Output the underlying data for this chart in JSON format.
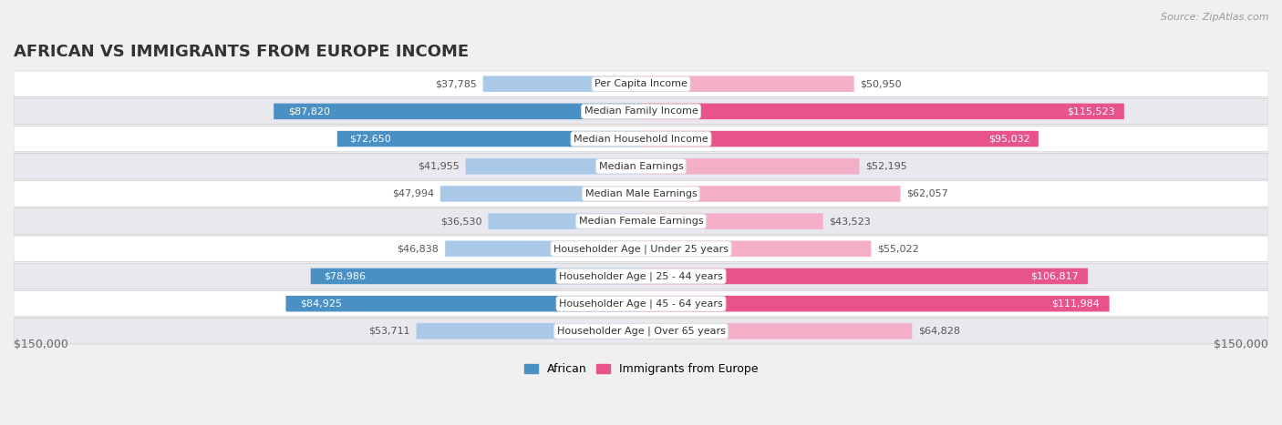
{
  "title": "African vs Immigrants from Europe Income",
  "source": "Source: ZipAtlas.com",
  "categories": [
    "Per Capita Income",
    "Median Family Income",
    "Median Household Income",
    "Median Earnings",
    "Median Male Earnings",
    "Median Female Earnings",
    "Householder Age | Under 25 years",
    "Householder Age | 25 - 44 years",
    "Householder Age | 45 - 64 years",
    "Householder Age | Over 65 years"
  ],
  "african_values": [
    37785,
    87820,
    72650,
    41955,
    47994,
    36530,
    46838,
    78986,
    84925,
    53711
  ],
  "europe_values": [
    50950,
    115523,
    95032,
    52195,
    62057,
    43523,
    55022,
    106817,
    111984,
    64828
  ],
  "african_labels": [
    "$37,785",
    "$87,820",
    "$72,650",
    "$41,955",
    "$47,994",
    "$36,530",
    "$46,838",
    "$78,986",
    "$84,925",
    "$53,711"
  ],
  "europe_labels": [
    "$50,950",
    "$115,523",
    "$95,032",
    "$52,195",
    "$62,057",
    "$43,523",
    "$55,022",
    "$106,817",
    "$111,984",
    "$64,828"
  ],
  "max_val": 150000,
  "african_color_light": "#aac9e8",
  "african_color_dark": "#4a90c4",
  "europe_color_light": "#f5aec8",
  "europe_color_dark": "#e8538a",
  "bg_color": "#f0f0f0",
  "row_bg_light": "#ffffff",
  "row_bg_dark": "#e8e8ee",
  "title_color": "#333333",
  "source_color": "#999999",
  "label_dark_text": "#ffffff",
  "label_light_text": "#555555",
  "axis_label_color": "#666666",
  "legend_african": "African",
  "legend_europe": "Immigrants from Europe",
  "african_threshold": 65000,
  "europe_threshold": 65000,
  "title_fontsize": 13,
  "label_fontsize": 8,
  "cat_fontsize": 8,
  "axis_fontsize": 9
}
